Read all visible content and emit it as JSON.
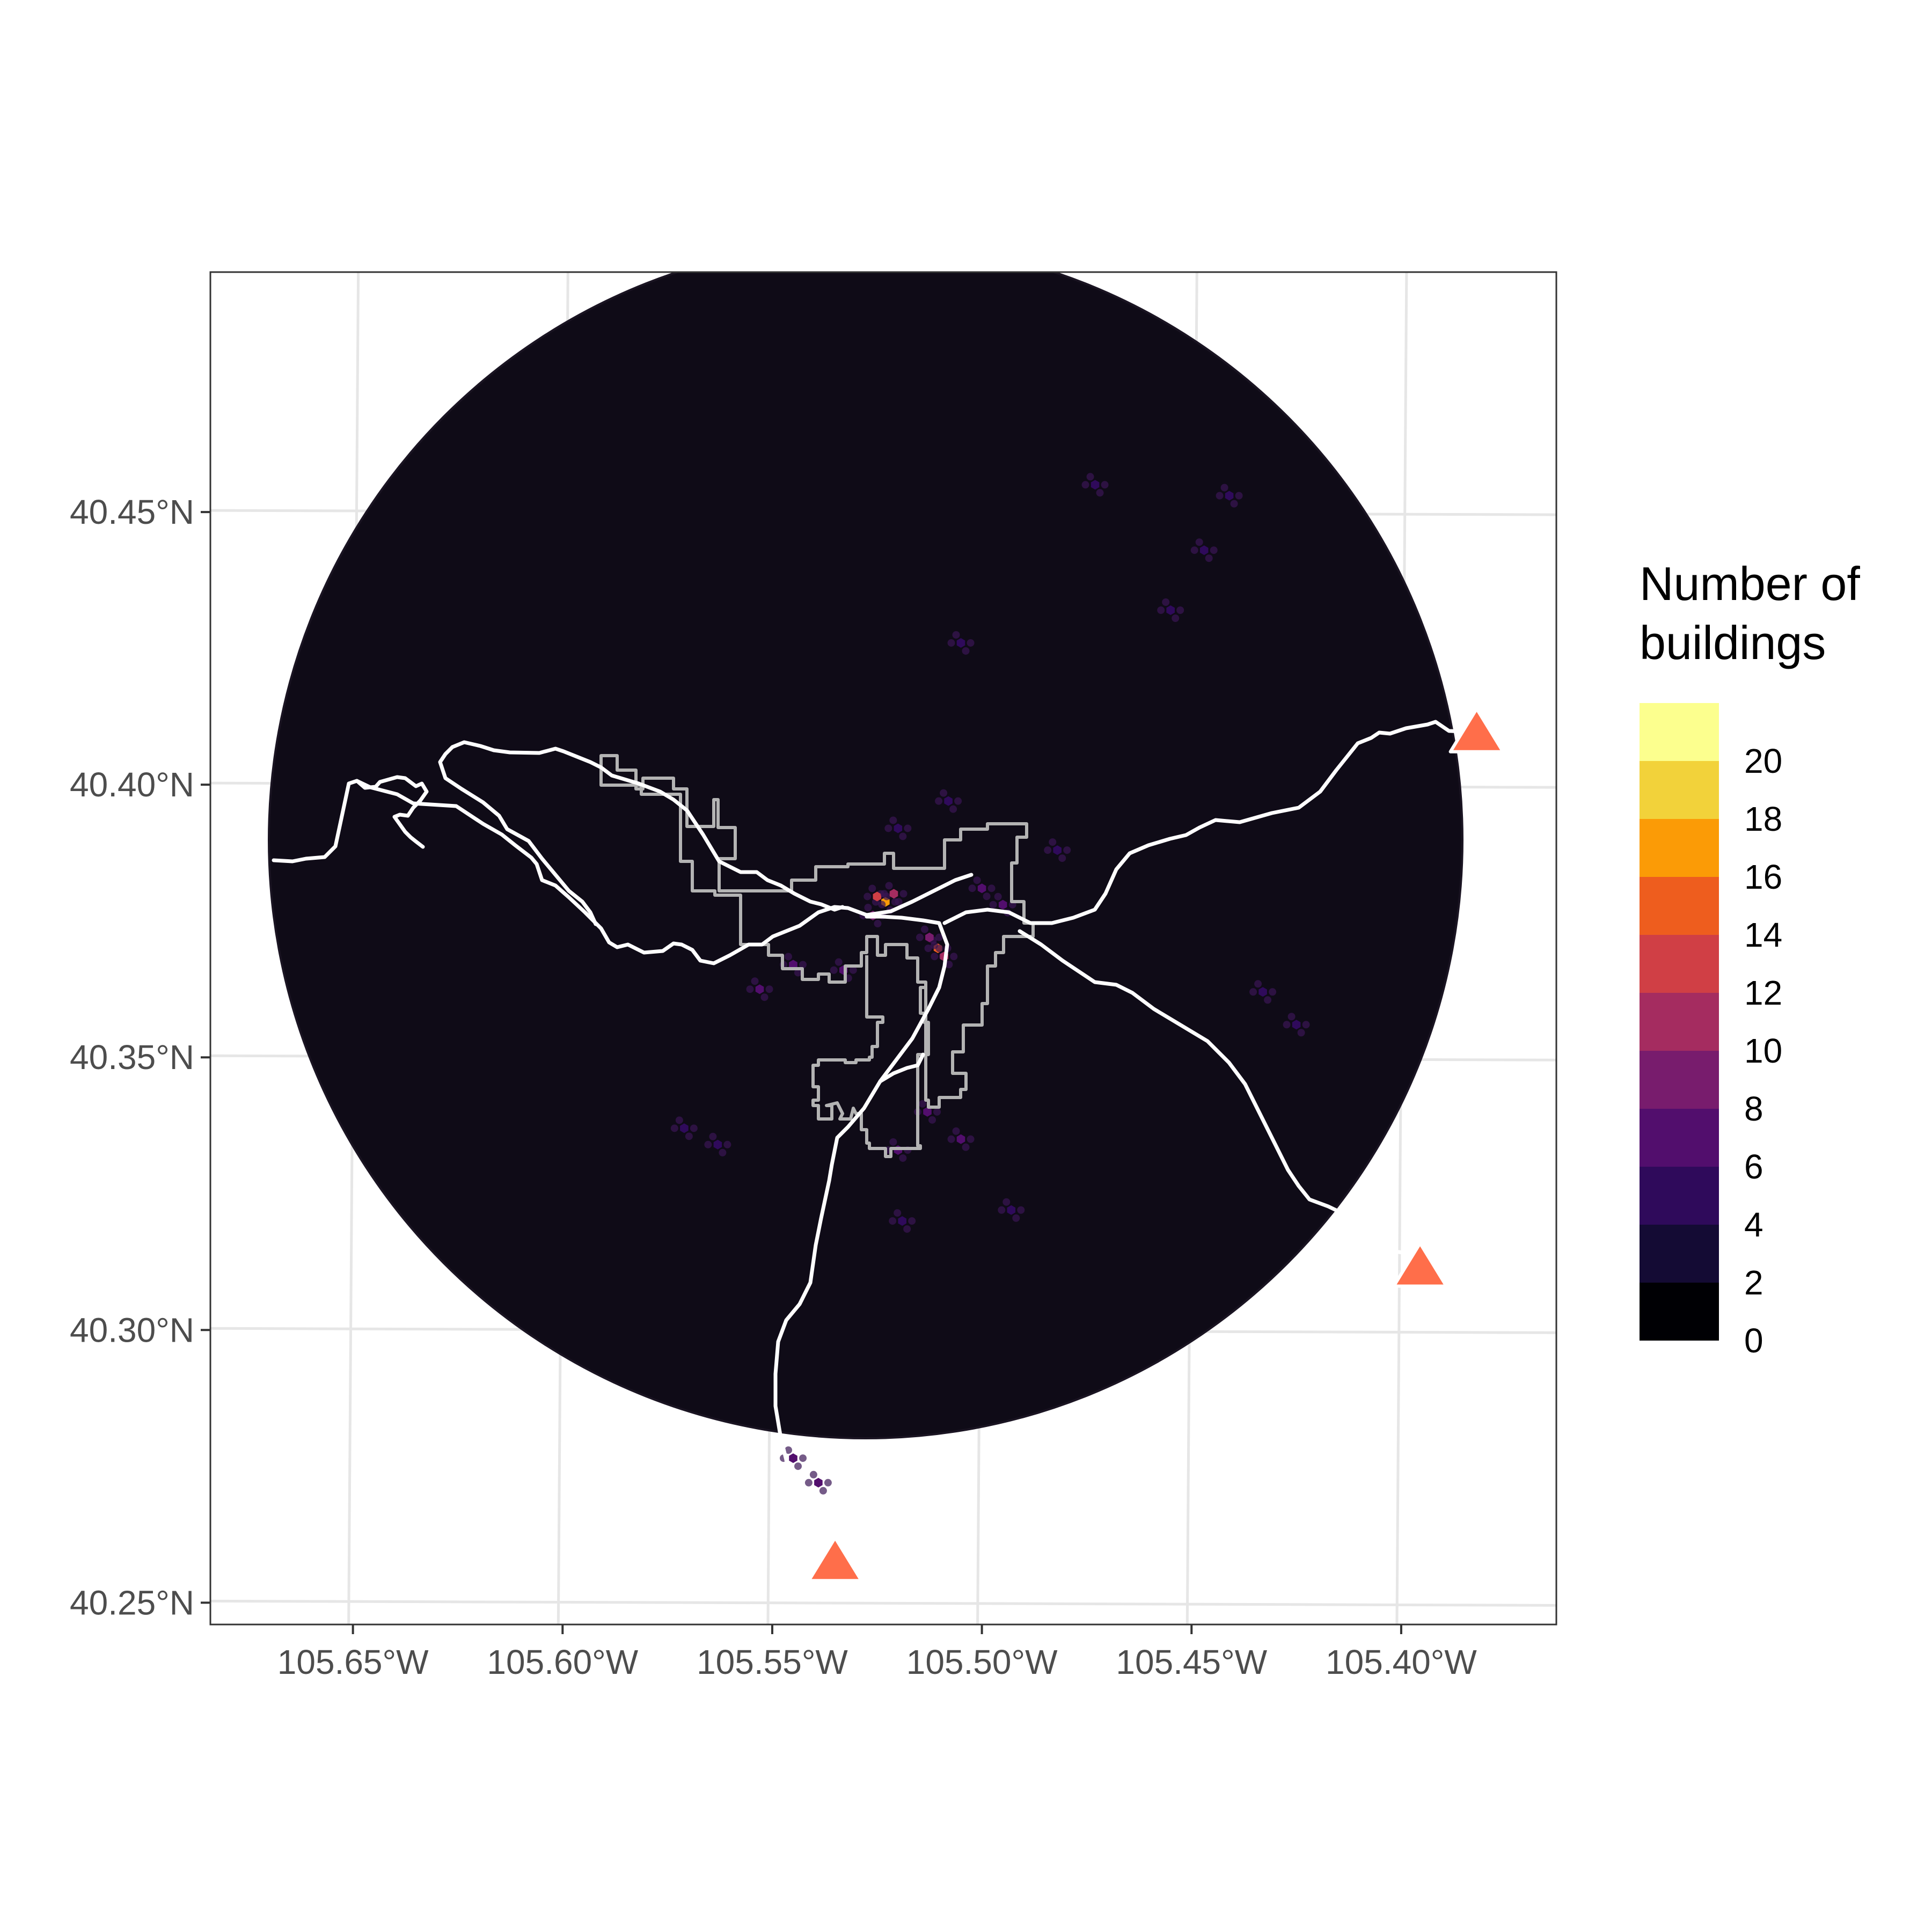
{
  "map": {
    "y_ticks": [
      {
        "value": 40.45,
        "label": "40.45°N"
      },
      {
        "value": 40.4,
        "label": "40.40°N"
      },
      {
        "value": 40.35,
        "label": "40.35°N"
      },
      {
        "value": 40.3,
        "label": "40.30°N"
      },
      {
        "value": 40.25,
        "label": "40.25°N"
      }
    ],
    "x_ticks": [
      {
        "value": -105.65,
        "label": "105.65°W"
      },
      {
        "value": -105.6,
        "label": "105.60°W"
      },
      {
        "value": -105.55,
        "label": "105.55°W"
      },
      {
        "value": -105.5,
        "label": "105.50°W"
      },
      {
        "value": -105.45,
        "label": "105.45°W"
      },
      {
        "value": -105.4,
        "label": "105.40°W"
      }
    ],
    "lon_range": [
      -105.684,
      -105.363
    ],
    "lat_range": [
      40.246,
      40.494
    ],
    "background_color": "#0f0b17",
    "road_color": "#ffffff",
    "boundary_color": "#b3b3b3",
    "marker_color": "#ff6e4a",
    "markers": [
      {
        "lon": -105.535,
        "lat": 40.257
      },
      {
        "lon": -105.3955,
        "lat": 40.311
      },
      {
        "lon": -105.382,
        "lat": 40.409
      }
    ],
    "hotspots": [
      {
        "lon": -105.523,
        "lat": 40.3785,
        "count": 16
      },
      {
        "lon": -105.525,
        "lat": 40.3795,
        "count": 12
      },
      {
        "lon": -105.521,
        "lat": 40.38,
        "count": 10
      },
      {
        "lon": -105.5105,
        "lat": 40.37,
        "count": 14
      },
      {
        "lon": -105.509,
        "lat": 40.3685,
        "count": 10
      },
      {
        "lon": -105.5125,
        "lat": 40.372,
        "count": 8
      },
      {
        "lon": -105.526,
        "lat": 40.376,
        "count": 8
      },
      {
        "lon": -105.545,
        "lat": 40.367,
        "count": 6
      },
      {
        "lon": -105.553,
        "lat": 40.3625,
        "count": 6
      },
      {
        "lon": -105.533,
        "lat": 40.366,
        "count": 6
      },
      {
        "lon": -105.513,
        "lat": 40.34,
        "count": 6
      },
      {
        "lon": -105.505,
        "lat": 40.335,
        "count": 6
      },
      {
        "lon": -105.495,
        "lat": 40.378,
        "count": 6
      },
      {
        "lon": -105.5,
        "lat": 40.381,
        "count": 6
      },
      {
        "lon": -105.52,
        "lat": 40.333,
        "count": 6
      },
      {
        "lon": -105.539,
        "lat": 40.272,
        "count": 6
      },
      {
        "lon": -105.545,
        "lat": 40.2765,
        "count": 6
      },
      {
        "lon": -105.441,
        "lat": 40.453,
        "count": 4
      },
      {
        "lon": -105.447,
        "lat": 40.443,
        "count": 4
      },
      {
        "lon": -105.455,
        "lat": 40.432,
        "count": 4
      },
      {
        "lon": -105.473,
        "lat": 40.455,
        "count": 4
      },
      {
        "lon": -105.482,
        "lat": 40.388,
        "count": 4
      },
      {
        "lon": -105.433,
        "lat": 40.362,
        "count": 4
      },
      {
        "lon": -105.425,
        "lat": 40.356,
        "count": 4
      },
      {
        "lon": -105.571,
        "lat": 40.337,
        "count": 4
      },
      {
        "lon": -105.563,
        "lat": 40.334,
        "count": 4
      },
      {
        "lon": -105.493,
        "lat": 40.322,
        "count": 4
      },
      {
        "lon": -105.519,
        "lat": 40.32,
        "count": 4
      },
      {
        "lon": -105.508,
        "lat": 40.397,
        "count": 4
      },
      {
        "lon": -105.52,
        "lat": 40.392,
        "count": 4
      },
      {
        "lon": -105.505,
        "lat": 40.426,
        "count": 4
      }
    ]
  },
  "legend": {
    "title_line1": "Number of",
    "title_line2": "buildings",
    "bins": [
      {
        "color": "#000004",
        "upper": 0
      },
      {
        "color": "#140b34",
        "upper": 2
      },
      {
        "color": "#2f0a5b",
        "upper": 4
      },
      {
        "color": "#520e6d",
        "upper": 6
      },
      {
        "color": "#781c6d",
        "upper": 8
      },
      {
        "color": "#a52c60",
        "upper": 10
      },
      {
        "color": "#d03f45",
        "upper": 12
      },
      {
        "color": "#ee5d1e",
        "upper": 14
      },
      {
        "color": "#fb9b06",
        "upper": 16
      },
      {
        "color": "#f2d23a",
        "upper": 18
      },
      {
        "color": "#fcff8e",
        "upper": 20
      }
    ],
    "labels": [
      "0",
      "2",
      "4",
      "6",
      "8",
      "10",
      "12",
      "14",
      "16",
      "18",
      "20"
    ]
  }
}
